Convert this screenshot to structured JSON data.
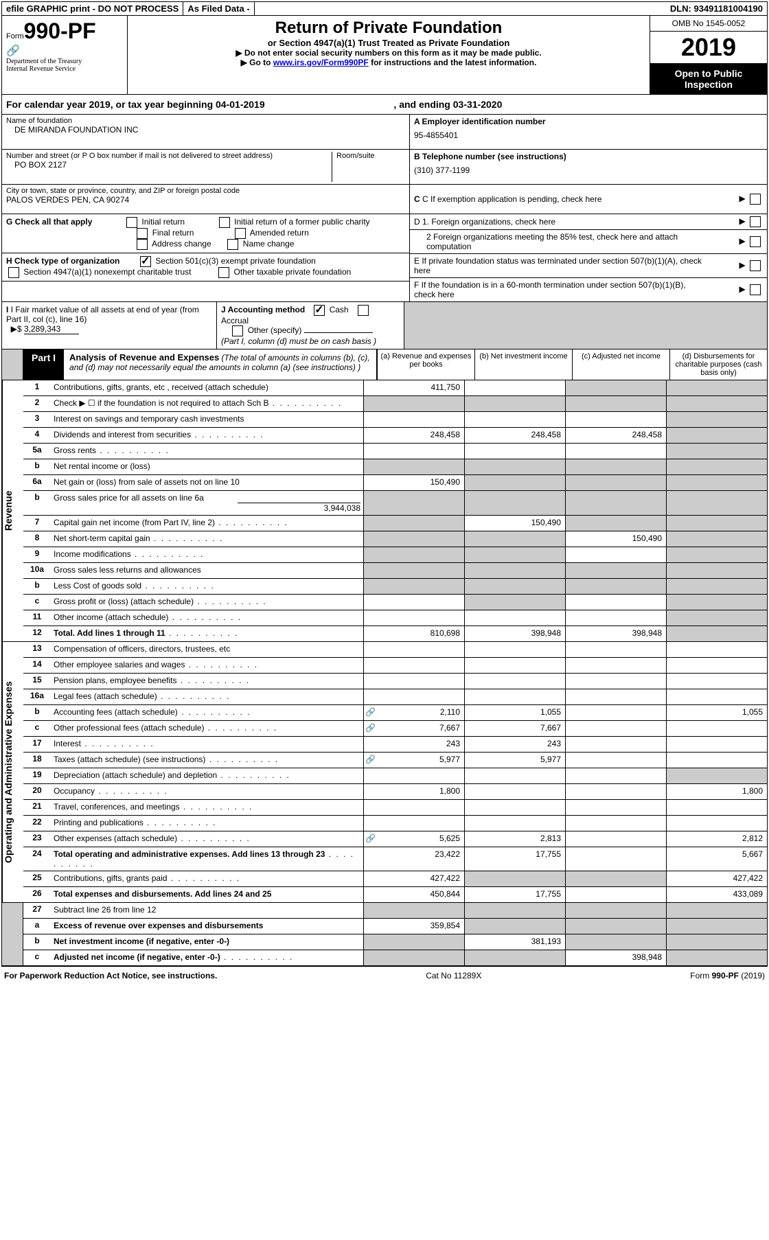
{
  "top": {
    "efile": "efile GRAPHIC print - DO NOT PROCESS",
    "asfiled": "As Filed Data -",
    "dln": "DLN: 93491181004190"
  },
  "header": {
    "form_label": "Form",
    "form_no": "990-PF",
    "dept1": "Department of the Treasury",
    "dept2": "Internal Revenue Service",
    "title": "Return of Private Foundation",
    "sub1": "or Section 4947(a)(1) Trust Treated as Private Foundation",
    "sub2": "▶ Do not enter social security numbers on this form as it may be made public.",
    "sub3_pre": "▶ Go to ",
    "sub3_link": "www.irs.gov/Form990PF",
    "sub3_post": " for instructions and the latest information.",
    "omb": "OMB No 1545-0052",
    "year": "2019",
    "open": "Open to Public Inspection"
  },
  "calyear": {
    "text_pre": "For calendar year 2019, or tax year beginning ",
    "begin": "04-01-2019",
    "text_mid": " , and ending ",
    "end": "03-31-2020"
  },
  "name": {
    "label": "Name of foundation",
    "val": "DE MIRANDA FOUNDATION INC"
  },
  "addr": {
    "label": "Number and street (or P O  box number if mail is not delivered to street address)",
    "room_label": "Room/suite",
    "val": "PO BOX 2127"
  },
  "city": {
    "label": "City or town, state or province, country, and ZIP or foreign postal code",
    "val": "PALOS VERDES PEN, CA  90274"
  },
  "right": {
    "A_label": "A Employer identification number",
    "A_val": "95-4855401",
    "B_label": "B Telephone number (see instructions)",
    "B_val": "(310) 377-1199",
    "C_label": "C  If exemption application is pending, check here",
    "D1_label": "D 1. Foreign organizations, check here",
    "D2_label": "2  Foreign organizations meeting the 85% test, check here and attach computation",
    "E_label": "E  If private foundation status was terminated under section 507(b)(1)(A), check here",
    "F_label": "F  If the foundation is in a 60-month termination under section 507(b)(1)(B), check here"
  },
  "G": {
    "label": "G Check all that apply",
    "o1": "Initial return",
    "o2": "Initial return of a former public charity",
    "o3": "Final return",
    "o4": "Amended return",
    "o5": "Address change",
    "o6": "Name change"
  },
  "H": {
    "label": "H Check type of organization",
    "o1": "Section 501(c)(3) exempt private foundation",
    "o2": "Section 4947(a)(1) nonexempt charitable trust",
    "o3": "Other taxable private foundation"
  },
  "I": {
    "label": "I Fair market value of all assets at end of year (from Part II, col  (c), line 16)",
    "val": "3,289,343"
  },
  "J": {
    "label": "J Accounting method",
    "cash": "Cash",
    "accrual": "Accrual",
    "other": "Other (specify)",
    "note": "(Part I, column (d) must be on cash basis )"
  },
  "part1": {
    "badge": "Part I",
    "title": "Analysis of Revenue and Expenses",
    "desc": " (The total of amounts in columns (b), (c), and (d) may not necessarily equal the amounts in column (a) (see instructions) )",
    "col_a": "(a)   Revenue and expenses per books",
    "col_b": "(b)  Net investment income",
    "col_c": "(c)  Adjusted net income",
    "col_d": "(d)  Disbursements for charitable purposes (cash basis only)"
  },
  "sides": {
    "revenue": "Revenue",
    "expenses": "Operating and Administrative Expenses"
  },
  "rows": [
    {
      "n": "1",
      "l": "Contributions, gifts, grants, etc , received (attach schedule)",
      "a": "411,750",
      "grey_b": false,
      "grey_c": true,
      "grey_d": true
    },
    {
      "n": "2",
      "l": "Check ▶ ☐ if the foundation is not required to attach Sch  B",
      "dots": true,
      "grey_a": true,
      "grey_b": true,
      "grey_c": true,
      "grey_d": true
    },
    {
      "n": "3",
      "l": "Interest on savings and temporary cash investments",
      "grey_d": true
    },
    {
      "n": "4",
      "l": "Dividends and interest from securities",
      "dots": true,
      "a": "248,458",
      "b": "248,458",
      "c": "248,458",
      "grey_d": true
    },
    {
      "n": "5a",
      "l": "Gross rents",
      "dots": true,
      "grey_d": true
    },
    {
      "n": "b",
      "l": "Net rental income or (loss)",
      "indent": true,
      "grey_a": true,
      "grey_b": true,
      "grey_c": true,
      "grey_d": true
    },
    {
      "n": "6a",
      "l": "Net gain or (loss) from sale of assets not on line 10",
      "a": "150,490",
      "grey_b": true,
      "grey_c": true,
      "grey_d": true
    },
    {
      "n": "b",
      "l": "Gross sales price for all assets on line 6a",
      "indent": true,
      "inline_val": "3,944,038",
      "grey_a": true,
      "grey_b": true,
      "grey_c": true,
      "grey_d": true
    },
    {
      "n": "7",
      "l": "Capital gain net income (from Part IV, line 2)",
      "dots": true,
      "grey_a": true,
      "b": "150,490",
      "grey_c": true,
      "grey_d": true
    },
    {
      "n": "8",
      "l": "Net short-term capital gain",
      "dots": true,
      "grey_a": true,
      "grey_b": true,
      "c": "150,490",
      "grey_d": true
    },
    {
      "n": "9",
      "l": "Income modifications",
      "dots": true,
      "grey_a": true,
      "grey_b": true,
      "grey_d": true
    },
    {
      "n": "10a",
      "l": "Gross sales less returns and allowances",
      "indent": false,
      "grey_a": true,
      "grey_b": true,
      "grey_c": true,
      "grey_d": true
    },
    {
      "n": "b",
      "l": "Less  Cost of goods sold",
      "dots": true,
      "indent": true,
      "grey_a": true,
      "grey_b": true,
      "grey_c": true,
      "grey_d": true
    },
    {
      "n": "c",
      "l": "Gross profit or (loss) (attach schedule)",
      "dots": true,
      "indent": true,
      "grey_b": true,
      "grey_d": true
    },
    {
      "n": "11",
      "l": "Other income (attach schedule)",
      "dots": true,
      "grey_d": true
    },
    {
      "n": "12",
      "l": "Total. Add lines 1 through 11",
      "dots": true,
      "bold": true,
      "a": "810,698",
      "b": "398,948",
      "c": "398,948",
      "grey_d": true
    }
  ],
  "exp_rows": [
    {
      "n": "13",
      "l": "Compensation of officers, directors, trustees, etc"
    },
    {
      "n": "14",
      "l": "Other employee salaries and wages",
      "dots": true
    },
    {
      "n": "15",
      "l": "Pension plans, employee benefits",
      "dots": true
    },
    {
      "n": "16a",
      "l": "Legal fees (attach schedule)",
      "dots": true
    },
    {
      "n": "b",
      "l": "Accounting fees (attach schedule)",
      "dots": true,
      "indent": true,
      "icon": true,
      "a": "2,110",
      "b": "1,055",
      "d": "1,055"
    },
    {
      "n": "c",
      "l": "Other professional fees (attach schedule)",
      "dots": true,
      "indent": true,
      "icon": true,
      "a": "7,667",
      "b": "7,667"
    },
    {
      "n": "17",
      "l": "Interest",
      "dots": true,
      "a": "243",
      "b": "243"
    },
    {
      "n": "18",
      "l": "Taxes (attach schedule) (see instructions)",
      "dots": true,
      "icon": true,
      "a": "5,977",
      "b": "5,977"
    },
    {
      "n": "19",
      "l": "Depreciation (attach schedule) and depletion",
      "dots": true,
      "grey_d": true
    },
    {
      "n": "20",
      "l": "Occupancy",
      "dots": true,
      "a": "1,800",
      "d": "1,800"
    },
    {
      "n": "21",
      "l": "Travel, conferences, and meetings",
      "dots": true
    },
    {
      "n": "22",
      "l": "Printing and publications",
      "dots": true
    },
    {
      "n": "23",
      "l": "Other expenses (attach schedule)",
      "dots": true,
      "icon": true,
      "a": "5,625",
      "b": "2,813",
      "d": "2,812"
    },
    {
      "n": "24",
      "l": "Total operating and administrative expenses. Add lines 13 through 23",
      "dots": true,
      "bold": true,
      "a": "23,422",
      "b": "17,755",
      "d": "5,667"
    },
    {
      "n": "25",
      "l": "Contributions, gifts, grants paid",
      "dots": true,
      "a": "427,422",
      "grey_b": true,
      "grey_c": true,
      "d": "427,422"
    },
    {
      "n": "26",
      "l": "Total expenses and disbursements. Add lines 24 and 25",
      "bold": true,
      "a": "450,844",
      "b": "17,755",
      "d": "433,089"
    }
  ],
  "bottom_rows": [
    {
      "n": "27",
      "l": "Subtract line 26 from line 12",
      "grey_a": true,
      "grey_b": true,
      "grey_c": true,
      "grey_d": true
    },
    {
      "n": "a",
      "l": "Excess of revenue over expenses and disbursements",
      "bold": true,
      "indent": true,
      "a": "359,854",
      "grey_b": true,
      "grey_c": true,
      "grey_d": true
    },
    {
      "n": "b",
      "l": "Net investment income (if negative, enter -0-)",
      "bold": true,
      "indent": true,
      "grey_a": true,
      "b": "381,193",
      "grey_c": true,
      "grey_d": true
    },
    {
      "n": "c",
      "l": "Adjusted net income (if negative, enter -0-)",
      "dots": true,
      "bold": true,
      "indent": true,
      "grey_a": true,
      "grey_b": true,
      "c": "398,948",
      "grey_d": true
    }
  ],
  "footer": {
    "left": "For Paperwork Reduction Act Notice, see instructions.",
    "mid": "Cat  No  11289X",
    "right": "Form 990-PF (2019)"
  }
}
